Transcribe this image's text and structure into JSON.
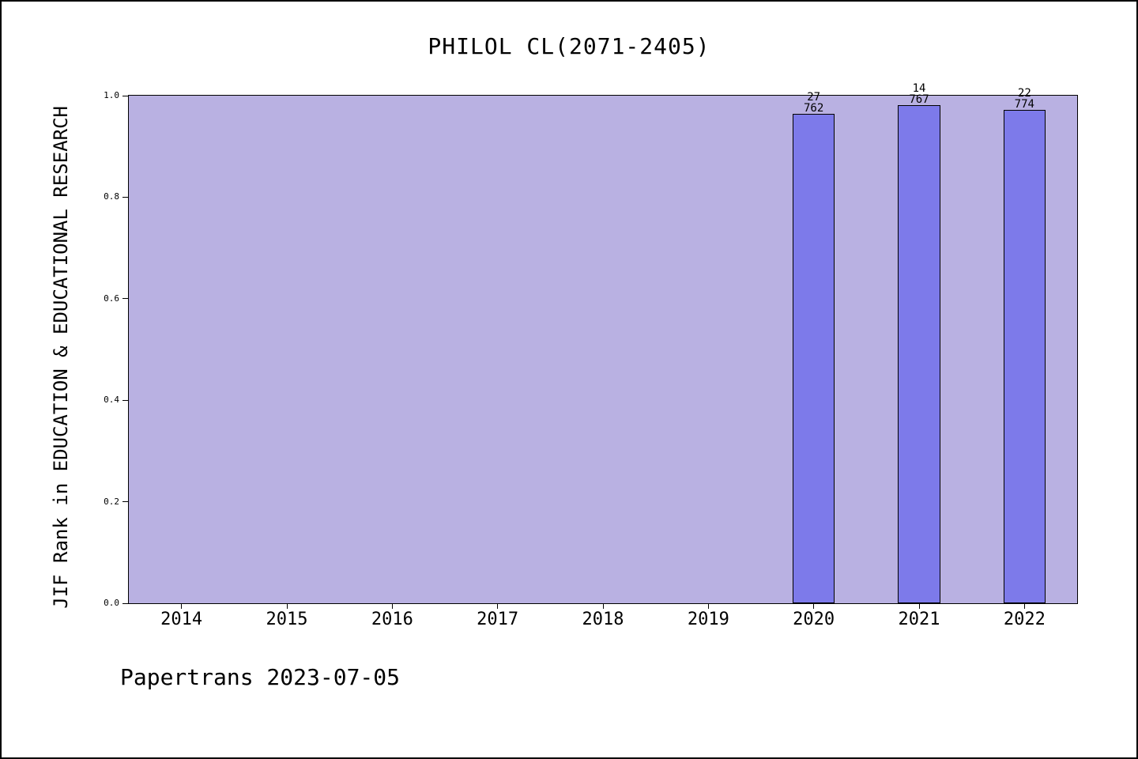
{
  "header": {
    "title": "PHILOL CL(2071-2405)"
  },
  "footer": {
    "text": "Papertrans 2023-07-05"
  },
  "chart_data": {
    "type": "bar",
    "title": "PHILOL CL(2071-2405)",
    "xlabel": "",
    "ylabel": "JIF Rank in EDUCATION & EDUCATIONAL RESEARCH",
    "xlim": [
      2013.5,
      2022.5
    ],
    "ylim": [
      0.0,
      1.0
    ],
    "xticks": [
      "2014",
      "2015",
      "2016",
      "2017",
      "2018",
      "2019",
      "2020",
      "2021",
      "2022"
    ],
    "yticks": [
      "0.0",
      "0.2",
      "0.4",
      "0.6",
      "0.8",
      "1.0"
    ],
    "grid": false,
    "legend": null,
    "bar_width": 0.4,
    "series": [
      {
        "name": "JIF Rank in EDUCATION & EDUCATIONAL RESEARCH",
        "x": [
          2020,
          2021,
          2022
        ],
        "values": [
          0.9646,
          0.9817,
          0.9716
        ],
        "labels": [
          {
            "numerator": "27",
            "denominator": "762"
          },
          {
            "numerator": "14",
            "denominator": "767"
          },
          {
            "numerator": "22",
            "denominator": "774"
          }
        ]
      }
    ],
    "colors": {
      "page_bg": "#ffffff",
      "plot_bg": "#b9b1e2",
      "bar": "#7d7aea",
      "bar_edge": "#000000",
      "text": "#000000"
    }
  }
}
